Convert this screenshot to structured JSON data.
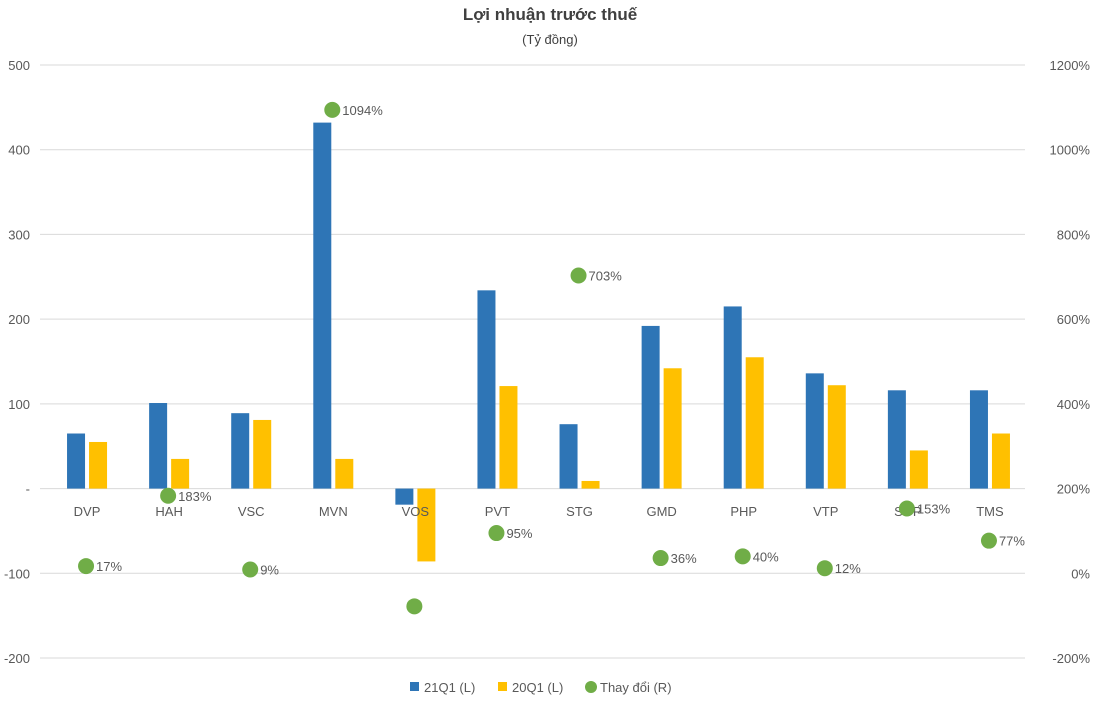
{
  "chart_data": {
    "type": "bar",
    "title": "Lợi nhuận trước thuế",
    "subtitle": "(Tỷ đồng)",
    "categories": [
      "DVP",
      "HAH",
      "VSC",
      "MVN",
      "VOS",
      "PVT",
      "STG",
      "GMD",
      "PHP",
      "VTP",
      "SGP",
      "TMS"
    ],
    "series": [
      {
        "name": "21Q1 (L)",
        "axis": "left",
        "kind": "bar",
        "color": "#2E75B6",
        "values": [
          65,
          101,
          89,
          432,
          -19,
          234,
          76,
          192,
          215,
          136,
          116,
          116
        ]
      },
      {
        "name": "20Q1 (L)",
        "axis": "left",
        "kind": "bar",
        "color": "#FFC000",
        "values": [
          55,
          35,
          81,
          35,
          -86,
          121,
          9,
          142,
          155,
          122,
          45,
          65
        ]
      },
      {
        "name": "Thay đổi (R)",
        "axis": "right",
        "kind": "scatter",
        "color": "#70AD47",
        "values": [
          17,
          183,
          9,
          1094,
          -78,
          95,
          703,
          36,
          40,
          12,
          153,
          77
        ],
        "labels": [
          "17%",
          "183%",
          "9%",
          "1094%",
          "",
          "95%",
          "703%",
          "36%",
          "40%",
          "12%",
          "153%",
          "77%"
        ]
      }
    ],
    "left_axis": {
      "min": -200,
      "max": 500,
      "step": 100,
      "ticks": [
        "-200",
        "-100",
        "-",
        "100",
        "200",
        "300",
        "400",
        "500"
      ]
    },
    "right_axis": {
      "min": -200,
      "max": 1200,
      "step": 200,
      "ticks": [
        "-200%",
        "0%",
        "200%",
        "400%",
        "600%",
        "800%",
        "1000%",
        "1200%"
      ]
    },
    "grid": true,
    "legend": "bottom"
  }
}
